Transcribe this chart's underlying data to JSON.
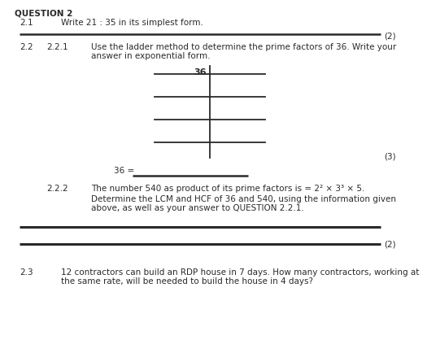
{
  "bg_color": "#ffffff",
  "text_color": "#2a2a2a",
  "header": "QUESTION 2",
  "q21_num": "2.1",
  "q21_text": "Write 21 : 35 in its simplest form.",
  "q21_marks": "(2)",
  "q22_num": "2.2",
  "q221_num": "2.2.1",
  "q221_line1": "Use the ladder method to determine the prime factors of 36. Write your",
  "q221_line2": "answer in exponential form.",
  "q221_marks": "(3)",
  "q221_label": "36",
  "q221_ans": "36 =",
  "q222_num": "2.2.2",
  "q222_text1": "The number 540 as product of its prime factors is = 2² × 3³ × 5.",
  "q222_line1": "Determine the LCM and HCF of 36 and 540, using the information given",
  "q222_line2": "above, as well as your answer to QUESTION 2.2.1.",
  "q222_marks": "(2)",
  "q23_num": "2.3",
  "q23_line1": "12 contractors can build an RDP house in 7 days. How many contractors, working at",
  "q23_line2": "the same rate, will be needed to build the house in 4 days?",
  "font_size": 7.5,
  "font_size_bold": 7.5
}
